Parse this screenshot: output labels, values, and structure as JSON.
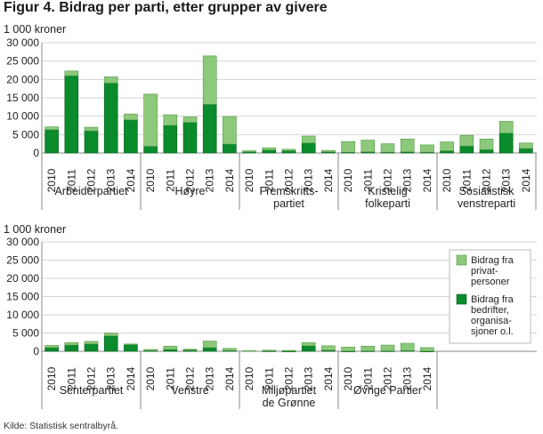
{
  "title": "Figur 4. Bidrag per parti, etter grupper av givere",
  "source": "Kilde: Statistisk sentralbyrå.",
  "colors": {
    "private": "#8cc97a",
    "business": "#0a8b2c",
    "private_edge": "#4e9a43",
    "business_edge": "#055f1d",
    "grid": "#d4d4d4",
    "axis": "#888888"
  },
  "legend": {
    "private": [
      "Bidrag fra",
      "privat-",
      "personer"
    ],
    "business": [
      "Bidrag fra",
      "bedrifter,",
      "organisa-",
      "sjoner o.l."
    ]
  },
  "chart_data": [
    {
      "type": "bar",
      "stacked": true,
      "ylabel": "1 000 kroner",
      "ylim": [
        0,
        30000
      ],
      "yticks": [
        0,
        5000,
        10000,
        15000,
        20000,
        25000,
        30000
      ],
      "ytick_labels": [
        "0",
        "5 000",
        "10 000",
        "15 000",
        "20 000",
        "25 000",
        "30 000"
      ],
      "grid": true,
      "groups": [
        {
          "label": [
            "Arbeiderpartiet"
          ],
          "years": [
            "2010",
            "2011",
            "2012",
            "2013",
            "2014"
          ],
          "business": [
            6300,
            21000,
            6000,
            19000,
            9000
          ],
          "private": [
            800,
            1300,
            1000,
            1700,
            1600
          ]
        },
        {
          "label": [
            "Høyre"
          ],
          "years": [
            "2010",
            "2011",
            "2012",
            "2013",
            "2014"
          ],
          "business": [
            1800,
            7500,
            8300,
            13200,
            2400
          ],
          "private": [
            14200,
            2900,
            1500,
            13200,
            7500
          ]
        },
        {
          "label": [
            "Fremskritts-",
            "partiet"
          ],
          "years": [
            "2010",
            "2011",
            "2012",
            "2013",
            "2014"
          ],
          "business": [
            300,
            800,
            600,
            2700,
            300
          ],
          "private": [
            300,
            600,
            400,
            1900,
            400
          ]
        },
        {
          "label": [
            "Kristelig",
            "folkeparti"
          ],
          "years": [
            "2010",
            "2011",
            "2012",
            "2013",
            "2014"
          ],
          "business": [
            200,
            300,
            200,
            300,
            200
          ],
          "private": [
            2900,
            3200,
            2300,
            3500,
            2000
          ]
        },
        {
          "label": [
            "Sosialistisk",
            "venstreparti"
          ],
          "years": [
            "2010",
            "2011",
            "2012",
            "2013",
            "2014"
          ],
          "business": [
            600,
            1900,
            900,
            5400,
            1200
          ],
          "private": [
            2400,
            2900,
            2900,
            3200,
            1500
          ]
        }
      ]
    },
    {
      "type": "bar",
      "stacked": true,
      "ylabel": "1 000 kroner",
      "ylim": [
        0,
        30000
      ],
      "yticks": [
        0,
        5000,
        10000,
        15000,
        20000,
        25000,
        30000
      ],
      "ytick_labels": [
        "0",
        "5 000",
        "10 000",
        "15 000",
        "20 000",
        "25 000",
        "30 000"
      ],
      "grid": true,
      "legend_position": "right",
      "groups": [
        {
          "label": [
            "Senterpartiet"
          ],
          "years": [
            "2010",
            "2011",
            "2012",
            "2013",
            "2014"
          ],
          "business": [
            1000,
            1700,
            2000,
            4200,
            1800
          ],
          "private": [
            600,
            700,
            700,
            800,
            200
          ]
        },
        {
          "label": [
            "Venstre"
          ],
          "years": [
            "2010",
            "2011",
            "2012",
            "2013",
            "2014"
          ],
          "business": [
            200,
            500,
            300,
            1000,
            200
          ],
          "private": [
            300,
            900,
            300,
            1800,
            600
          ]
        },
        {
          "label": [
            "Miljøpartiet",
            "de Grønne"
          ],
          "years": [
            "2010",
            "2011",
            "2012",
            "2013",
            "2014"
          ],
          "business": [
            0,
            100,
            50,
            1500,
            300
          ],
          "private": [
            200,
            200,
            200,
            900,
            1200
          ]
        },
        {
          "label": [
            "Øvrige Partier"
          ],
          "years": [
            "2010",
            "2011",
            "2012",
            "2013",
            "2014"
          ],
          "business": [
            50,
            100,
            100,
            200,
            50
          ],
          "private": [
            1100,
            1300,
            1600,
            2000,
            950
          ]
        }
      ]
    }
  ]
}
